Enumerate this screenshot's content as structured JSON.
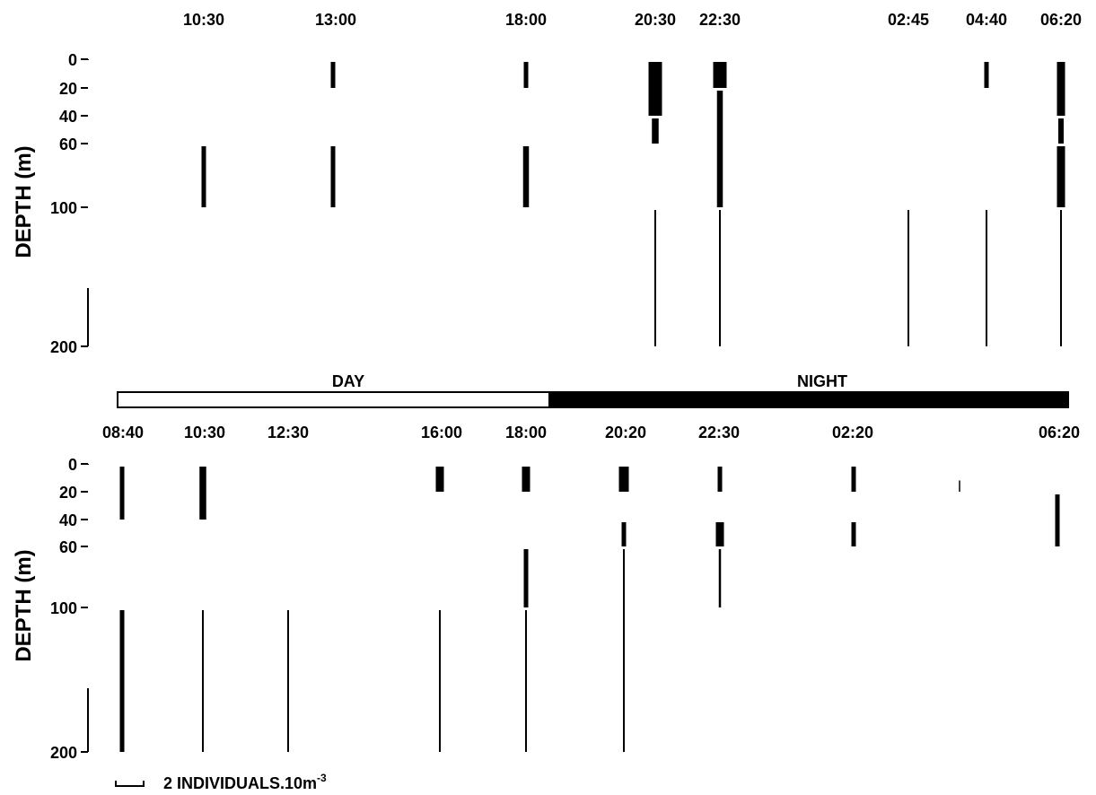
{
  "chart_data": [
    {
      "type": "vertical-distribution",
      "panel": "top",
      "ylabel": "DEPTH (m)",
      "y_ticks": [
        0,
        20,
        40,
        60,
        100,
        200
      ],
      "ylim": [
        0,
        200
      ],
      "unit_scale_label": "2 INDIVIDUALS.10m",
      "unit_scale_exponent": "-3",
      "samples": [
        {
          "time": "10:30",
          "layers": [
            {
              "from": 60,
              "to": 100,
              "abundance": 1.0
            }
          ]
        },
        {
          "time": "13:00",
          "layers": [
            {
              "from": 0,
              "to": 20,
              "abundance": 1.0
            },
            {
              "from": 60,
              "to": 100,
              "abundance": 1.0
            }
          ]
        },
        {
          "time": "18:00",
          "layers": [
            {
              "from": 0,
              "to": 20,
              "abundance": 1.0
            },
            {
              "from": 60,
              "to": 100,
              "abundance": 1.3
            }
          ]
        },
        {
          "time": "20:30",
          "layers": [
            {
              "from": 0,
              "to": 40,
              "abundance": 3.0
            },
            {
              "from": 40,
              "to": 60,
              "abundance": 1.5
            },
            {
              "from": 100,
              "to": 200,
              "abundance": 0.4
            }
          ]
        },
        {
          "time": "22:30",
          "layers": [
            {
              "from": 0,
              "to": 20,
              "abundance": 3.0
            },
            {
              "from": 20,
              "to": 100,
              "abundance": 1.3
            },
            {
              "from": 100,
              "to": 200,
              "abundance": 0.4
            }
          ]
        },
        {
          "time": "02:45",
          "layers": [
            {
              "from": 100,
              "to": 200,
              "abundance": 0.4
            }
          ]
        },
        {
          "time": "04:40",
          "layers": [
            {
              "from": 0,
              "to": 20,
              "abundance": 1.0
            },
            {
              "from": 100,
              "to": 200,
              "abundance": 0.4
            }
          ]
        },
        {
          "time": "06:20",
          "layers": [
            {
              "from": 0,
              "to": 40,
              "abundance": 1.8
            },
            {
              "from": 40,
              "to": 60,
              "abundance": 1.2
            },
            {
              "from": 60,
              "to": 100,
              "abundance": 1.8
            },
            {
              "from": 100,
              "to": 200,
              "abundance": 0.4
            }
          ]
        }
      ]
    },
    {
      "type": "vertical-distribution",
      "panel": "bottom",
      "ylabel": "DEPTH (m)",
      "y_ticks": [
        0,
        20,
        40,
        60,
        100,
        200
      ],
      "ylim": [
        0,
        200
      ],
      "samples": [
        {
          "time": "08:40",
          "layers": [
            {
              "from": 0,
              "to": 40,
              "abundance": 1.0
            },
            {
              "from": 100,
              "to": 200,
              "abundance": 1.0
            }
          ]
        },
        {
          "time": "10:30",
          "layers": [
            {
              "from": 0,
              "to": 40,
              "abundance": 1.5
            },
            {
              "from": 100,
              "to": 200,
              "abundance": 0.4
            }
          ]
        },
        {
          "time": "12:30",
          "layers": [
            {
              "from": 100,
              "to": 200,
              "abundance": 0.4
            }
          ]
        },
        {
          "time": "16:00",
          "layers": [
            {
              "from": 0,
              "to": 20,
              "abundance": 1.8
            },
            {
              "from": 100,
              "to": 200,
              "abundance": 0.4
            }
          ]
        },
        {
          "time": "18:00",
          "layers": [
            {
              "from": 0,
              "to": 20,
              "abundance": 1.8
            },
            {
              "from": 60,
              "to": 100,
              "abundance": 1.0
            },
            {
              "from": 100,
              "to": 200,
              "abundance": 0.4
            }
          ]
        },
        {
          "time": "20:20",
          "layers": [
            {
              "from": 0,
              "to": 20,
              "abundance": 2.2
            },
            {
              "from": 40,
              "to": 60,
              "abundance": 1.0
            },
            {
              "from": 60,
              "to": 200,
              "abundance": 0.4
            }
          ]
        },
        {
          "time": "22:30",
          "layers": [
            {
              "from": 0,
              "to": 20,
              "abundance": 1.0
            },
            {
              "from": 40,
              "to": 60,
              "abundance": 1.8
            },
            {
              "from": 60,
              "to": 100,
              "abundance": 0.5
            }
          ]
        },
        {
          "time": "02:20",
          "layers": [
            {
              "from": 0,
              "to": 20,
              "abundance": 1.0
            },
            {
              "from": 40,
              "to": 60,
              "abundance": 1.0
            }
          ]
        },
        {
          "time": "",
          "layers": [
            {
              "from": 10,
              "to": 20,
              "abundance": 0.3
            }
          ]
        },
        {
          "time": "06:20",
          "layers": [
            {
              "from": 20,
              "to": 60,
              "abundance": 1.0
            }
          ]
        }
      ]
    }
  ],
  "day_night_bar": {
    "day_label": "DAY",
    "night_label": "NIGHT",
    "day_color": "#ffffff",
    "night_color": "#000000"
  },
  "axis_tick_labels": [
    "0",
    "20",
    "40",
    "60",
    "100",
    "200"
  ],
  "legend": {
    "text": "2 INDIVIDUALS.10m",
    "exponent": "-3"
  }
}
